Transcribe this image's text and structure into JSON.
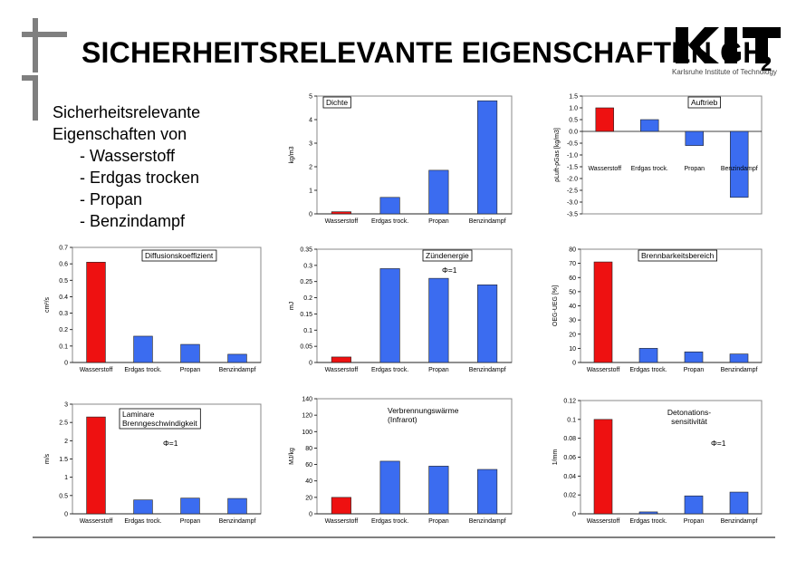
{
  "title": "SICHERHEITSRELEVANTE EIGENSCHAFTEN GH",
  "title_subscript": "2",
  "logo": {
    "text": "KIT",
    "tagline": "Karlsruhe Institute of Technology"
  },
  "intro": {
    "heading_line1": "Sicherheitsrelevante",
    "heading_line2": "Eigenschaften von",
    "items": [
      "- Wasserstoff",
      "- Erdgas trocken",
      "- Propan",
      "- Benzindampf"
    ]
  },
  "colors": {
    "hydrogen": "#ee1111",
    "others": "#3b6cf0",
    "frame": "#888888"
  },
  "chart_data": [
    {
      "id": "dichte",
      "type": "bar",
      "title": "Dichte",
      "note": "",
      "categories": [
        "Wasserstoff",
        "Erdgas trock.",
        "Propan",
        "Benzindampf"
      ],
      "values": [
        0.09,
        0.7,
        1.85,
        4.8
      ],
      "ylabel": "kg/m3",
      "ylim": [
        0,
        5
      ],
      "yticks": [
        "0",
        "1",
        "2",
        "3",
        "4",
        "5"
      ],
      "yticks_vals": [
        0,
        1,
        2,
        3,
        4,
        5
      ]
    },
    {
      "id": "auftrieb",
      "type": "bar",
      "title": "Auftrieb",
      "note": "",
      "categories": [
        "Wasserstoff",
        "Erdgas trock.",
        "Propan",
        "Benzindampf"
      ],
      "values": [
        1.0,
        0.5,
        -0.6,
        -2.8
      ],
      "ylabel": "ρLuft-ρGas [kg/m3]",
      "ylim": [
        -3.5,
        1.5
      ],
      "yticks": [
        "1.5",
        "1.0",
        "0.5",
        "0.0",
        "-0.5",
        "-1.0",
        "-1.5",
        "-2.0",
        "-2.5",
        "-3.0",
        "-3.5"
      ],
      "yticks_vals": [
        1.5,
        1.0,
        0.5,
        0.0,
        -0.5,
        -1.0,
        -1.5,
        -2.0,
        -2.5,
        -3.0,
        -3.5
      ]
    },
    {
      "id": "diffusion",
      "type": "bar",
      "title": "Diffusionskoeffizient",
      "note": "",
      "categories": [
        "Wasserstoff",
        "Erdgas trock.",
        "Propan",
        "Benzindampf"
      ],
      "values": [
        0.61,
        0.16,
        0.11,
        0.05
      ],
      "ylabel": "cm²/s",
      "ylim": [
        0,
        0.7
      ],
      "yticks": [
        "0",
        "0.1",
        "0.2",
        "0.3",
        "0.4",
        "0.5",
        "0.6",
        "0.7"
      ],
      "yticks_vals": [
        0,
        0.1,
        0.2,
        0.3,
        0.4,
        0.5,
        0.6,
        0.7
      ]
    },
    {
      "id": "zuendenergie",
      "type": "bar",
      "title": "Zündenergie",
      "note": "Φ=1",
      "categories": [
        "Wasserstoff",
        "Erdgas trock.",
        "Propan",
        "Benzindampf"
      ],
      "values": [
        0.017,
        0.29,
        0.26,
        0.24
      ],
      "ylabel": "mJ",
      "ylim": [
        0,
        0.35
      ],
      "yticks": [
        "0",
        "0.05",
        "0.1",
        "0.15",
        "0.2",
        "0.25",
        "0.3",
        "0.35"
      ],
      "yticks_vals": [
        0,
        0.05,
        0.1,
        0.15,
        0.2,
        0.25,
        0.3,
        0.35
      ]
    },
    {
      "id": "brennbarkeit",
      "type": "bar",
      "title": "Brennbarkeitsbereich",
      "note": "",
      "categories": [
        "Wasserstoff",
        "Erdgas trock.",
        "Propan",
        "Benzindampf"
      ],
      "values": [
        71,
        10,
        7.5,
        6
      ],
      "ylabel": "OEG-UEG [%]",
      "ylim": [
        0,
        80
      ],
      "yticks": [
        "0",
        "10",
        "20",
        "30",
        "40",
        "50",
        "60",
        "70",
        "80"
      ],
      "yticks_vals": [
        0,
        10,
        20,
        30,
        40,
        50,
        60,
        70,
        80
      ]
    },
    {
      "id": "brenngeschwindigkeit",
      "type": "bar",
      "title": "Laminare Brenngeschwindigkeit",
      "note": "Φ=1",
      "categories": [
        "Wasserstoff",
        "Erdgas trock.",
        "Propan",
        "Benzindampf"
      ],
      "values": [
        2.65,
        0.38,
        0.43,
        0.42
      ],
      "ylabel": "m/s",
      "ylim": [
        0,
        3
      ],
      "yticks": [
        "0",
        "0.5",
        "1",
        "1.5",
        "2",
        "2.5",
        "3"
      ],
      "yticks_vals": [
        0,
        0.5,
        1,
        1.5,
        2,
        2.5,
        3
      ]
    },
    {
      "id": "verbrennungswaerme",
      "type": "bar",
      "title": "Verbrennungswärme (Infrarot)",
      "note": "",
      "categories": [
        "Wasserstoff",
        "Erdgas trock.",
        "Propan",
        "Benzindampf"
      ],
      "values": [
        20,
        64,
        58,
        54
      ],
      "ylabel": "MJ/kg",
      "ylim": [
        0,
        140
      ],
      "yticks": [
        "0",
        "20",
        "40",
        "60",
        "80",
        "100",
        "120",
        "140"
      ],
      "yticks_vals": [
        0,
        20,
        40,
        60,
        80,
        100,
        120,
        140
      ]
    },
    {
      "id": "detonation",
      "type": "bar",
      "title": "Detonations-sensitivität",
      "note": "Φ=1",
      "categories": [
        "Wasserstoff",
        "Erdgas trock.",
        "Propan",
        "Benzindampf"
      ],
      "values": [
        0.1,
        0.002,
        0.019,
        0.023
      ],
      "ylabel": "1/mm",
      "ylim": [
        0,
        0.12
      ],
      "yticks": [
        "0",
        "0.02",
        "0.04",
        "0.06",
        "0.08",
        "0.1",
        "0.12"
      ],
      "yticks_vals": [
        0,
        0.02,
        0.04,
        0.06,
        0.08,
        0.1,
        0.12
      ]
    }
  ]
}
